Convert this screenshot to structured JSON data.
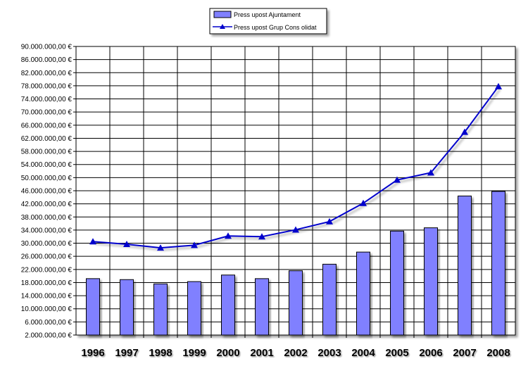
{
  "chart_data": {
    "type": "bar",
    "categories": [
      "1996",
      "1997",
      "1998",
      "1999",
      "2000",
      "2001",
      "2002",
      "2003",
      "2004",
      "2005",
      "2006",
      "2007",
      "2008"
    ],
    "series": [
      {
        "name": "Press upost Ajuntament",
        "type": "bar",
        "color": "#8080ff",
        "values": [
          19200000,
          18900000,
          17600000,
          18300000,
          20300000,
          19200000,
          21600000,
          23600000,
          27300000,
          33700000,
          34700000,
          44400000,
          45800000
        ]
      },
      {
        "name": "Press upost Grup Cons olidat",
        "type": "line",
        "marker": "triangle",
        "color": "#0000cc",
        "values": [
          30500000,
          29700000,
          28600000,
          29400000,
          32200000,
          32000000,
          34100000,
          36600000,
          42200000,
          49300000,
          51500000,
          63900000,
          77800000
        ]
      }
    ],
    "ylim": [
      2000000,
      90000000
    ],
    "yticks": [
      2000000,
      6000000,
      10000000,
      14000000,
      18000000,
      22000000,
      26000000,
      30000000,
      34000000,
      38000000,
      42000000,
      46000000,
      50000000,
      54000000,
      58000000,
      62000000,
      66000000,
      70000000,
      74000000,
      78000000,
      82000000,
      86000000,
      90000000
    ],
    "ytick_labels": [
      "2.000.000,00 €",
      "6.000.000,00 €",
      "10.000.000,00 €",
      "14.000.000,00 €",
      "18.000.000,00 €",
      "22.000.000,00 €",
      "26.000.000,00 €",
      "30.000.000,00 €",
      "34.000.000,00 €",
      "38.000.000,00 €",
      "42.000.000,00 €",
      "46.000.000,00 €",
      "50.000.000,00 €",
      "54.000.000,00 €",
      "58.000.000,00 €",
      "62.000.000,00 €",
      "66.000.000,00 €",
      "70.000.000,00 €",
      "74.000.000,00 €",
      "78.000.000,00 €",
      "82.000.000,00 €",
      "86.000.000,00 €",
      "90.000.000,00 €"
    ],
    "grid": true,
    "legend_position": "top-center",
    "title": "",
    "xlabel": "",
    "ylabel": ""
  }
}
